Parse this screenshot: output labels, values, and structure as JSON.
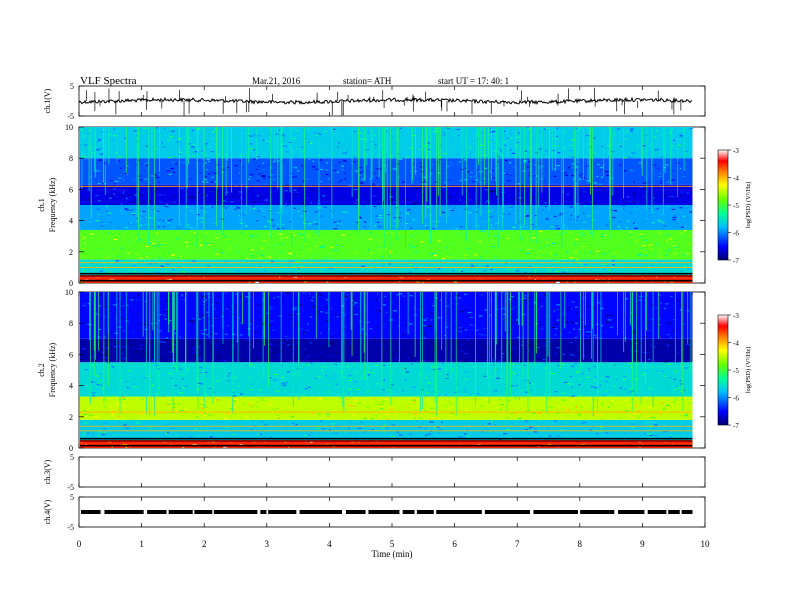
{
  "header": {
    "title": "VLF  Spectra",
    "date": "Mar.21, 2016",
    "station": "station= ATH",
    "start": "start  UT  =    17: 40: 1"
  },
  "chart_data": [
    {
      "type": "line",
      "panel": "ch1-waveform",
      "ylabel": "ch.1(V)",
      "ylim": [
        -5,
        5
      ],
      "yticks": [
        "5",
        "-5"
      ],
      "x_range_min": [
        0,
        9.8
      ],
      "approx_level": 0.0
    },
    {
      "type": "heatmap",
      "panel": "ch1-spectrogram",
      "ylabel": "ch.1\nFrequency  (kHz)",
      "ylim": [
        0,
        10
      ],
      "yticks": [
        "0",
        "2",
        "4",
        "6",
        "8",
        "10"
      ],
      "colorbar": {
        "label": "log(PSD) (V²/Hz)",
        "ticks": [
          "-3",
          "-4",
          "-5",
          "-6",
          "-7"
        ],
        "range": [
          -7,
          -3
        ]
      },
      "bands": [
        {
          "f_kHz": [
            0,
            0.5
          ],
          "logPSD": -3.5
        },
        {
          "f_kHz": [
            0.5,
            1.5
          ],
          "logPSD": -5.6
        },
        {
          "f_kHz": [
            1.5,
            3.4
          ],
          "logPSD": -4.9
        },
        {
          "f_kHz": [
            3.4,
            5.0
          ],
          "logPSD": -5.9
        },
        {
          "f_kHz": [
            5.0,
            6.3
          ],
          "logPSD": -6.6
        },
        {
          "f_kHz": [
            6.3,
            8.0
          ],
          "logPSD": -6.2
        },
        {
          "f_kHz": [
            8.0,
            10.0
          ],
          "logPSD": -5.7
        }
      ]
    },
    {
      "type": "heatmap",
      "panel": "ch2-spectrogram",
      "ylabel": "ch.2\nFrequency  (kHz)",
      "ylim": [
        0,
        10
      ],
      "yticks": [
        "0",
        "2",
        "4",
        "6",
        "8",
        "10"
      ],
      "colorbar": {
        "label": "log(PSD) (V²/Hz)",
        "ticks": [
          "-3",
          "-4",
          "-5",
          "-6",
          "-7"
        ],
        "range": [
          -7,
          -3
        ]
      },
      "bands": [
        {
          "f_kHz": [
            0,
            0.5
          ],
          "logPSD": -3.5
        },
        {
          "f_kHz": [
            0.5,
            1.8
          ],
          "logPSD": -5.7
        },
        {
          "f_kHz": [
            1.8,
            3.3
          ],
          "logPSD": -4.5
        },
        {
          "f_kHz": [
            3.3,
            5.5
          ],
          "logPSD": -5.6
        },
        {
          "f_kHz": [
            5.5,
            7.0
          ],
          "logPSD": -6.8
        },
        {
          "f_kHz": [
            7.0,
            10.0
          ],
          "logPSD": -6.5
        }
      ]
    },
    {
      "type": "line",
      "panel": "ch3-waveform",
      "ylabel": "ch.3(V)",
      "ylim": [
        -5,
        5
      ],
      "yticks": [
        "5",
        "-5"
      ]
    },
    {
      "type": "line",
      "panel": "ch4-waveform",
      "ylabel": "ch.4(V)",
      "ylim": [
        -5,
        5
      ],
      "yticks": [
        "5",
        "-5"
      ],
      "approx_level": 0.0
    }
  ],
  "x_axis": {
    "label": "Time  (min)",
    "xlim": [
      0,
      10
    ],
    "ticks": [
      "0",
      "1",
      "2",
      "3",
      "4",
      "5",
      "6",
      "7",
      "8",
      "9",
      "10"
    ]
  }
}
